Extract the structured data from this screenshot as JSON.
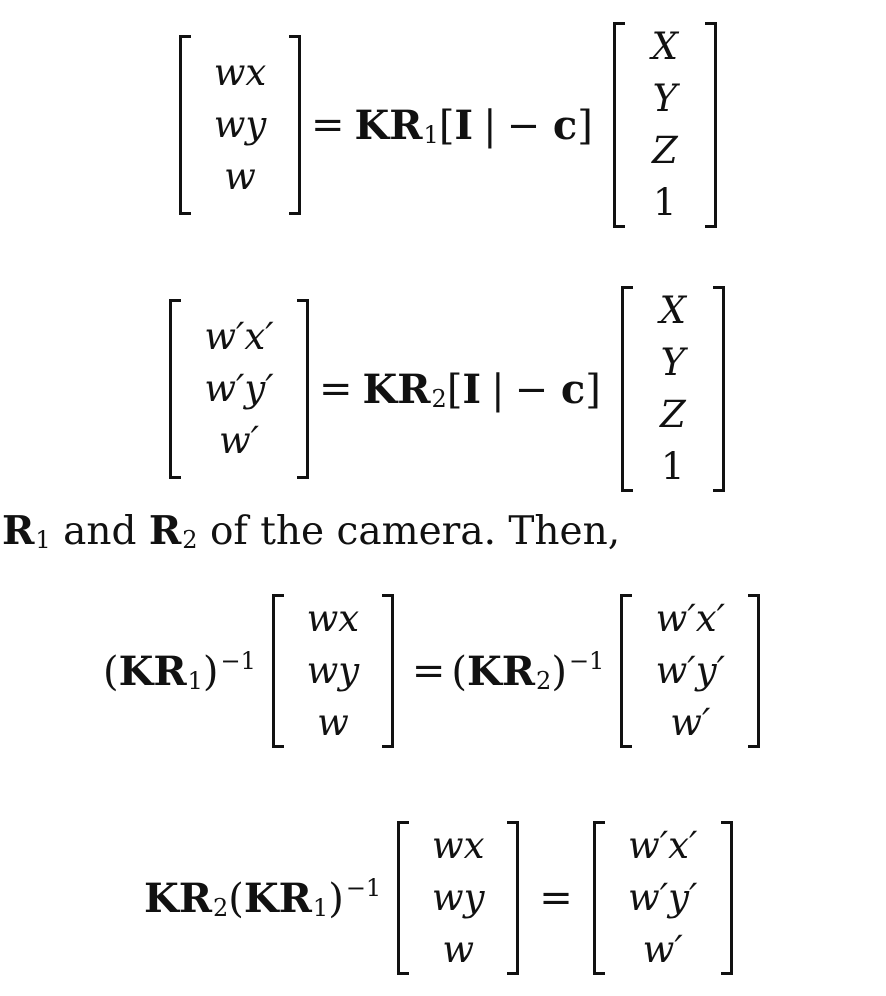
{
  "equation_1": {
    "lhs": [
      "wx",
      "wy",
      "w"
    ],
    "rhs_expr": "= KR₁[I | − c]",
    "vec": [
      "X",
      "Y",
      "Z",
      "1"
    ]
  },
  "equation_2": {
    "lhs": [
      "w′x′",
      "w′y′",
      "w′"
    ],
    "rhs_expr": "= KR₂[I | − c]",
    "vec": [
      "X",
      "Y",
      "Z",
      "1"
    ]
  },
  "text_line": "R₁ and R₂ of the camera. Then,",
  "equation_3": {
    "prefix": "(KR₁)⁻¹",
    "left_vec": [
      "wx",
      "wy",
      "w"
    ],
    "middle": "= (KR₂)⁻¹",
    "right_vec": [
      "w′x′",
      "w′y′",
      "w′"
    ]
  },
  "equation_4": {
    "prefix": "KR₂(KR₁)⁻¹",
    "left_vec": [
      "wx",
      "wy",
      "w"
    ],
    "equals": "=",
    "right_vec": [
      "w′x′",
      "w′y′",
      "w′"
    ]
  }
}
